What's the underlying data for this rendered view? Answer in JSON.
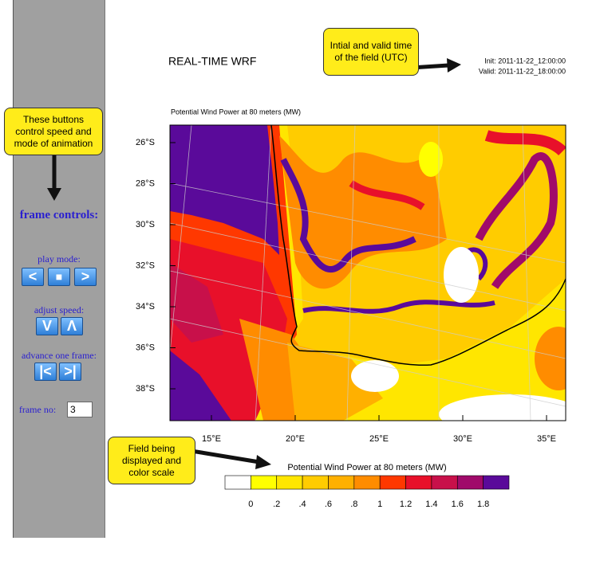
{
  "sidebar": {
    "heading": "frame controls:",
    "play_mode": "play mode:",
    "adjust_speed": "adjust speed:",
    "advance": "advance one frame:",
    "frame_no_label": "frame no:",
    "frame_no": "3"
  },
  "callouts": [
    "These buttons control speed and mode of animation",
    "Intial and valid time of the field (UTC)",
    "Field being displayed and color scale"
  ],
  "header": {
    "title": "REAL-TIME WRF",
    "init": "Init: 2011-11-22_12:00:00",
    "valid": "Valid: 2011-11-22_18:00:00"
  },
  "map": {
    "title": "Potential Wind Power at 80 meters  (MW)",
    "lat_labels": [
      "26°S",
      "28°S",
      "30°S",
      "32°S",
      "34°S",
      "36°S",
      "38°S"
    ],
    "lon_labels": [
      "15°E",
      "20°E",
      "25°E",
      "30°E",
      "35°E"
    ]
  },
  "colorbar": {
    "title": "Potential Wind Power at 80 meters  (MW)",
    "labels": [
      "0",
      ".2",
      ".4",
      ".6",
      ".8",
      "1",
      "1.2",
      "1.4",
      "1.6",
      "1.8"
    ],
    "colors": [
      "#ffffff",
      "#ffff00",
      "#ffe600",
      "#ffcc00",
      "#ffb000",
      "#ff8c00",
      "#ff3800",
      "#e8102a",
      "#c8104a",
      "#a00a6a",
      "#5a0a9a"
    ]
  }
}
